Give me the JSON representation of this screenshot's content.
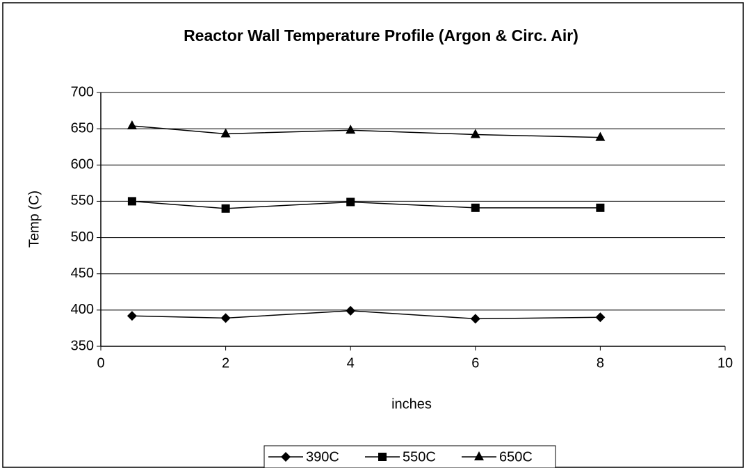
{
  "chart_data": {
    "type": "line",
    "title": "Reactor Wall Temperature Profile (Argon & Circ. Air)",
    "x_label": "inches",
    "y_label": "Temp (C)",
    "x": [
      0.5,
      2,
      4,
      6,
      8
    ],
    "series": [
      {
        "name": "390C",
        "color": "#000000",
        "marker": "diamond",
        "values": [
          392,
          389,
          399,
          388,
          390
        ]
      },
      {
        "name": "550C",
        "color": "#000000",
        "marker": "square",
        "values": [
          550,
          540,
          549,
          541,
          541
        ]
      },
      {
        "name": "650C",
        "color": "#000000",
        "marker": "triangle",
        "values": [
          654,
          643,
          648,
          642,
          638
        ]
      }
    ],
    "xlim": [
      0,
      10
    ],
    "xticks": [
      0,
      2,
      4,
      6,
      8,
      10
    ],
    "ylim": [
      350,
      700
    ],
    "yticks": [
      350,
      400,
      450,
      500,
      550,
      600,
      650,
      700
    ],
    "grid": true,
    "legend": "bottom"
  }
}
